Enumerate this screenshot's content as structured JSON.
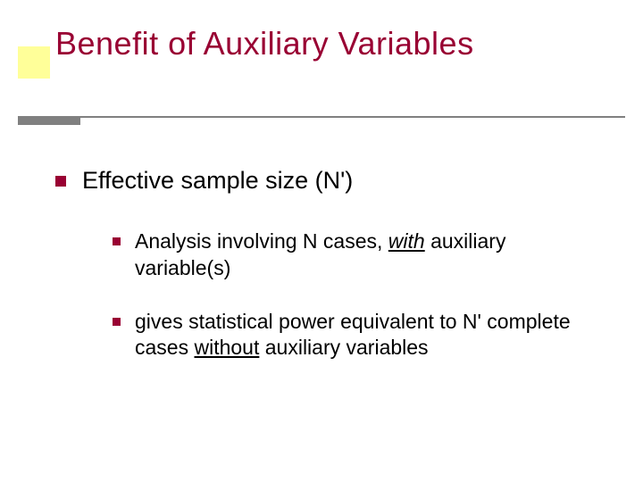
{
  "colors": {
    "title_color": "#990033",
    "bullet_color": "#990033",
    "accent_box": "#ffff99",
    "rule_color": "#808080",
    "text_color": "#000000",
    "background": "#ffffff"
  },
  "typography": {
    "title_fontsize_pt": 36,
    "body_l1_fontsize_pt": 27,
    "body_l2_fontsize_pt": 23,
    "font_family": "Verdana"
  },
  "slide": {
    "title": "Benefit of Auxiliary Variables",
    "bullets": [
      {
        "text": "Effective sample size (N')",
        "sub": [
          {
            "pre": "Analysis involving N cases, ",
            "emph_iu": "with",
            "post": " auxiliary variable(s)"
          },
          {
            "pre": "gives statistical power equivalent to N' complete cases ",
            "emph_u": "without",
            "post": " auxiliary variables"
          }
        ]
      }
    ]
  }
}
